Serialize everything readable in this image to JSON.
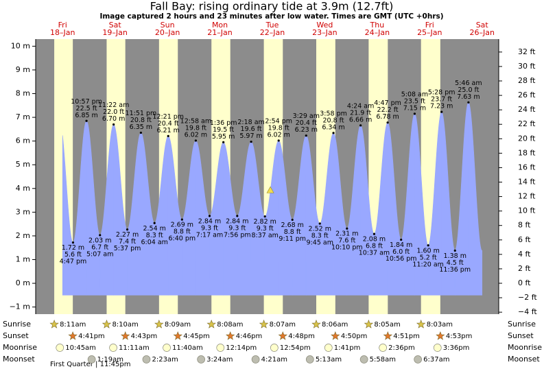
{
  "chart_data": {
    "type": "area",
    "title": "Fall Bay: rising  ordinary tide at 3.9m (12.7ft)",
    "subtitle": "Image captured 2 hours and 23 minutes after low water. Times are GMT (UTC +0hrs)",
    "categories": [
      "Fri",
      "Sat",
      "Sun",
      "Mon",
      "Tue",
      "Wed",
      "Thu",
      "Fri",
      "Sat"
    ],
    "dates": [
      "18–Jan",
      "19–Jan",
      "20–Jan",
      "21–Jan",
      "22–Jan",
      "23–Jan",
      "24–Jan",
      "25–Jan",
      "26–Jan"
    ],
    "x": [
      "4:47 pm",
      "10:57 pm",
      "5:07 am",
      "11:22 am",
      "5:37 pm",
      "11:51 pm",
      "6:04 am",
      "12:21 pm",
      "6:40 pm",
      "12:58 am",
      "7:17 am",
      "1:36 pm",
      "7:56 pm",
      "2:18 am",
      "8:37 am",
      "2:54 pm",
      "9:11 pm",
      "3:29 am",
      "9:45 am",
      "3:58 pm",
      "10:10 pm",
      "4:24 am",
      "10:37 am",
      "4:47 pm",
      "10:56 pm",
      "5:08 am",
      "11:20 am",
      "5:28 pm",
      "11:36 pm",
      "5:46 am"
    ],
    "series": [
      {
        "color": "#99a8ff",
        "values": [
          1.72,
          6.85,
          2.03,
          6.7,
          2.27,
          6.35,
          2.54,
          6.21,
          2.69,
          6.02,
          2.84,
          5.95,
          2.84,
          5.97,
          2.82,
          6.02,
          2.68,
          6.23,
          2.52,
          6.34,
          2.31,
          6.66,
          2.08,
          6.78,
          1.84,
          7.15,
          1.6,
          7.23,
          1.38,
          7.63
        ],
        "value_labels": [
          "1.72 m",
          "6.85 m",
          "2.03 m",
          "6.70 m",
          "2.27 m",
          "6.35 m",
          "2.54 m",
          "6.21 m",
          "2.69 m",
          "6.02 m",
          "2.84 m",
          "5.95 m",
          "2.84 m",
          "5.97 m",
          "2.82 m",
          "6.02 m",
          "2.68 m",
          "6.23 m",
          "2.52 m",
          "6.34 m",
          "2.31 m",
          "6.66 m",
          "2.08 m",
          "6.78 m",
          "1.84 m",
          "7.15 m",
          "1.60 m",
          "7.23 m",
          "1.38 m",
          "7.63 m"
        ],
        "ft_labels": [
          "5.6 ft",
          "22.5 ft",
          "6.7 ft",
          "22.0 ft",
          "7.4 ft",
          "20.8 ft",
          "8.3 ft",
          "20.4 ft",
          "8.8 ft",
          "19.8 ft",
          "9.3 ft",
          "19.5 ft",
          "9.3 ft",
          "19.6 ft",
          "9.3 ft",
          "19.8 ft",
          "8.8 ft",
          "20.4 ft",
          "8.3 ft",
          "20.8 ft",
          "7.6 ft",
          "21.9 ft",
          "6.8 ft",
          "22.2 ft",
          "6.0 ft",
          "23.5 ft",
          "5.2 ft",
          "23.7 ft",
          "4.5 ft",
          "25.0 ft"
        ]
      }
    ],
    "current_marker": {
      "value": 3.9,
      "color": "#f0dc50"
    },
    "ylim": [
      -1.3,
      10.3
    ],
    "yticks": [
      {
        "value": -1,
        "label": "−1 m"
      },
      {
        "value": 0,
        "label": "0 m"
      },
      {
        "value": 1,
        "label": "1 m"
      },
      {
        "value": 2,
        "label": "2 m"
      },
      {
        "value": 3,
        "label": "3 m"
      },
      {
        "value": 4,
        "label": "4 m"
      },
      {
        "value": 5,
        "label": "5 m"
      },
      {
        "value": 6,
        "label": "6 m"
      },
      {
        "value": 7,
        "label": "7 m"
      },
      {
        "value": 8,
        "label": "8 m"
      },
      {
        "value": 9,
        "label": "9 m"
      },
      {
        "value": 10,
        "label": "10 m"
      }
    ],
    "y2lim": [
      -4.27,
      33.79
    ],
    "y2ticks": [
      {
        "value": -4,
        "label": "−4 ft"
      },
      {
        "value": -2,
        "label": "−2 ft"
      },
      {
        "value": 0,
        "label": "0 ft"
      },
      {
        "value": 2,
        "label": "2 ft"
      },
      {
        "value": 4,
        "label": "4 ft"
      },
      {
        "value": 6,
        "label": "6 ft"
      },
      {
        "value": 8,
        "label": "8 ft"
      },
      {
        "value": 10,
        "label": "10 ft"
      },
      {
        "value": 12,
        "label": "12 ft"
      },
      {
        "value": 14,
        "label": "14 ft"
      },
      {
        "value": 16,
        "label": "16 ft"
      },
      {
        "value": 18,
        "label": "18 ft"
      },
      {
        "value": 20,
        "label": "20 ft"
      },
      {
        "value": 22,
        "label": "22 ft"
      },
      {
        "value": 24,
        "label": "24 ft"
      },
      {
        "value": 26,
        "label": "26 ft"
      },
      {
        "value": 28,
        "label": "28 ft"
      },
      {
        "value": 30,
        "label": "30 ft"
      },
      {
        "value": 32,
        "label": "32 ft"
      }
    ],
    "day_color": "#ffffcc",
    "night_color": "#8c8c8c",
    "almanac": [
      {
        "label": "Sunrise",
        "color": "#d8c34a",
        "times": [
          "8:11am",
          "8:10am",
          "8:09am",
          "8:08am",
          "8:07am",
          "8:06am",
          "8:05am",
          "8:03am",
          null
        ]
      },
      {
        "label": "Sunset",
        "color": "#e0782c",
        "times": [
          "4:41pm",
          "4:43pm",
          "4:45pm",
          "4:46pm",
          "4:48pm",
          "4:50pm",
          "4:51pm",
          "4:53pm",
          null
        ]
      },
      {
        "label": "Moonrise",
        "color": "#ffffcc",
        "times": [
          "10:45am",
          "11:11am",
          "11:40am",
          "12:14pm",
          "12:54pm",
          "1:41pm",
          "2:36pm",
          "3:36pm",
          null
        ]
      },
      {
        "label": "Moonset",
        "color": "#bdbdb0",
        "times": [
          null,
          "1:19am",
          "2:23am",
          "3:24am",
          "4:21am",
          "5:13am",
          "5:58am",
          "6:37am",
          null
        ]
      }
    ],
    "moon_phase": "First Quarter | 11:45pm"
  }
}
